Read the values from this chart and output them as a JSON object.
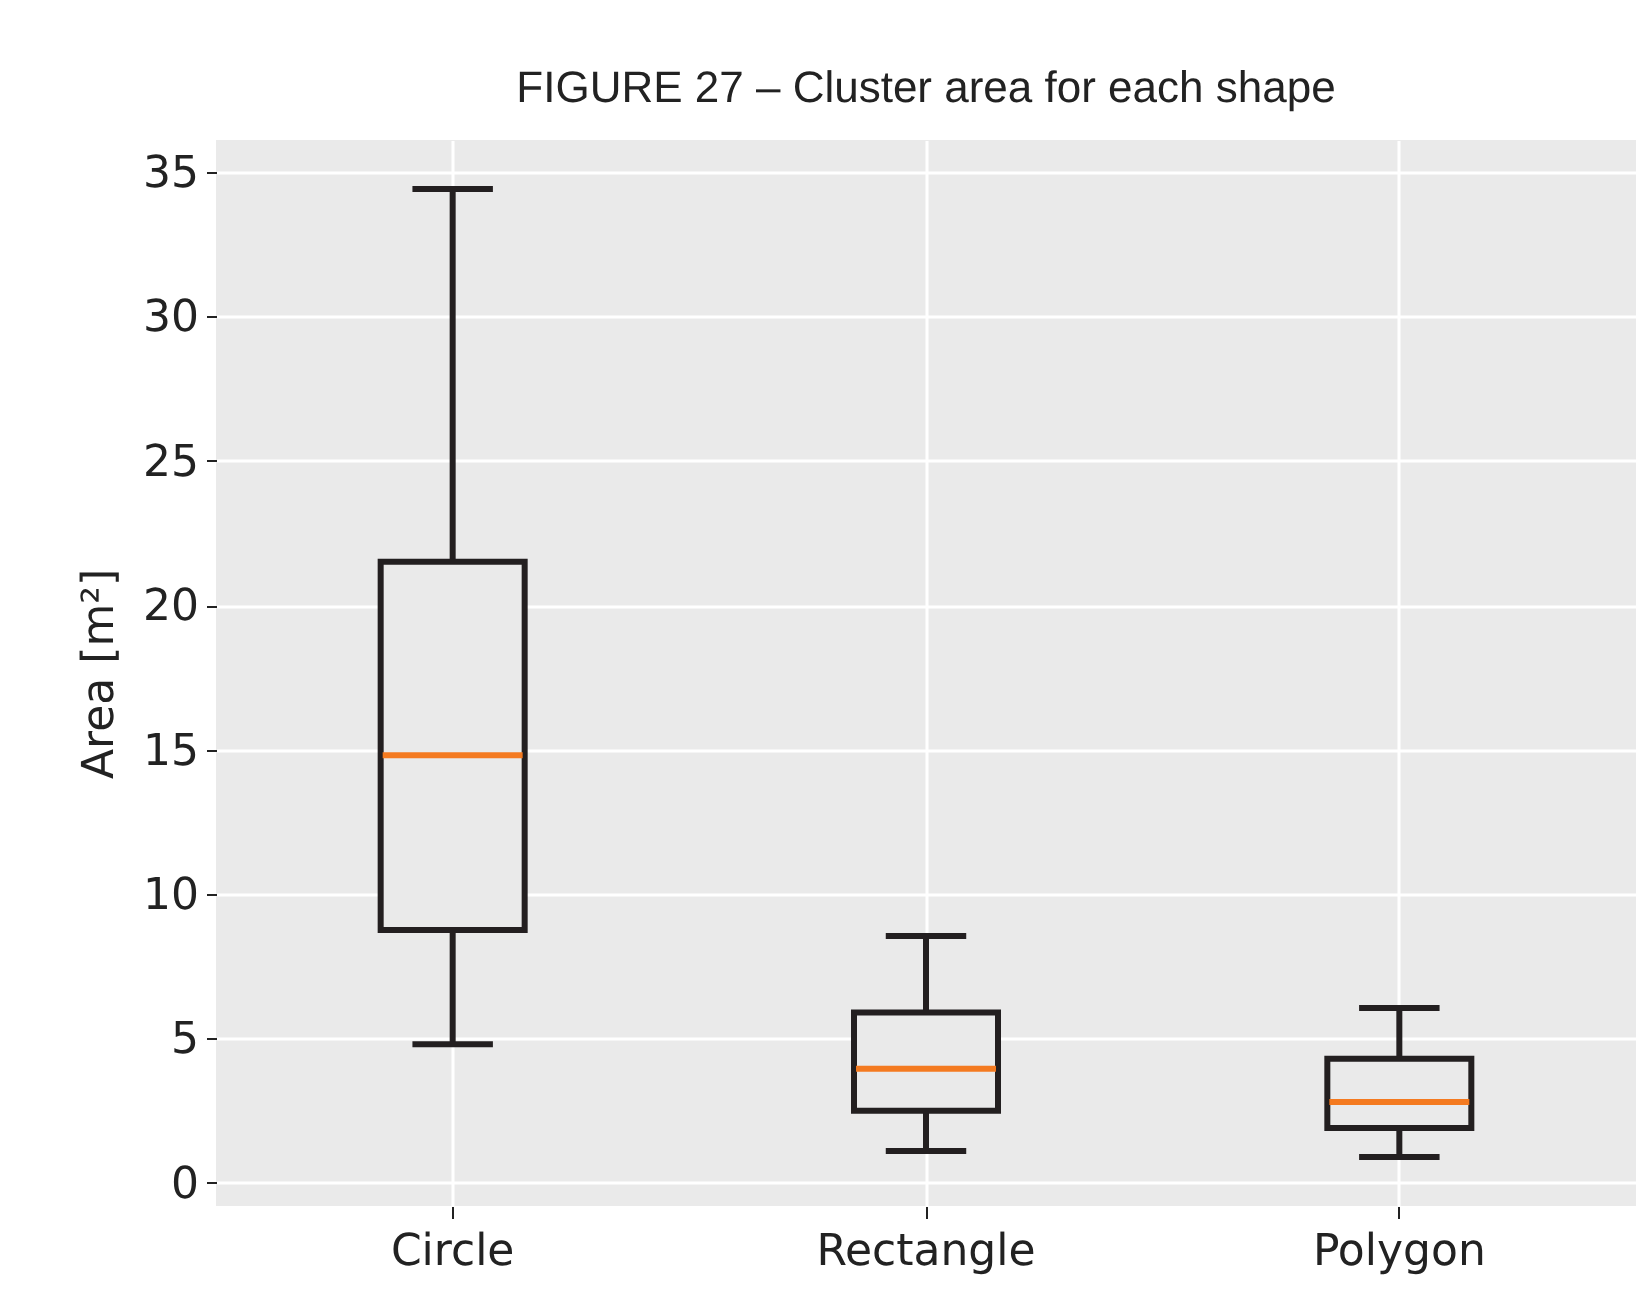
{
  "chart_data": {
    "type": "box",
    "title": "FIGURE  27 – Cluster area for each shape",
    "ylabel": "Area [m²]",
    "categories": [
      "Circle",
      "Rectangle",
      "Polygon"
    ],
    "series": [
      {
        "color": "#231f20",
        "boxes": [
          {
            "low": 4.8,
            "q1": 8.75,
            "median": 14.8,
            "q3": 21.5,
            "high": 34.4
          },
          {
            "low": 1.1,
            "q1": 2.5,
            "median": 3.95,
            "q3": 5.9,
            "high": 8.55
          },
          {
            "low": 0.9,
            "q1": 1.9,
            "median": 2.8,
            "q3": 4.3,
            "high": 6.05
          }
        ]
      }
    ],
    "ylim": [
      -0.8,
      36.1
    ],
    "yticks": [
      0,
      5,
      10,
      15,
      20,
      25,
      30,
      35
    ],
    "grid": true
  }
}
